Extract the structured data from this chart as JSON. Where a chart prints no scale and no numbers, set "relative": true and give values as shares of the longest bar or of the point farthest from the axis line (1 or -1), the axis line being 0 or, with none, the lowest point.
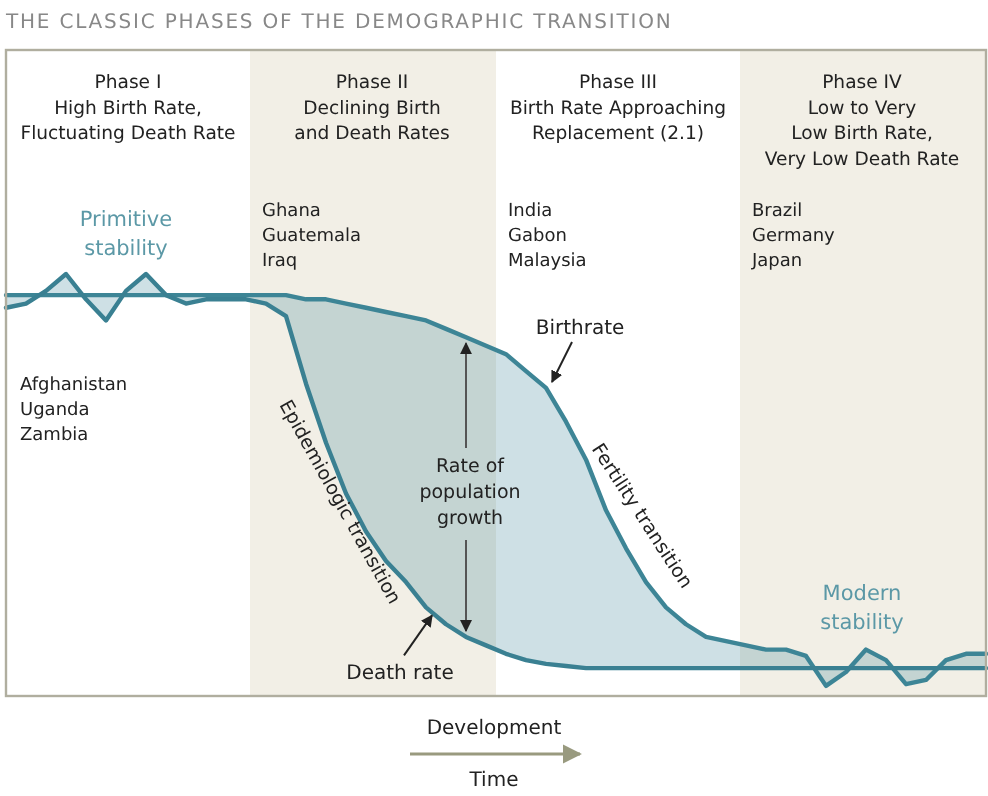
{
  "chart_data": {
    "type": "line",
    "title": "THE CLASSIC PHASES OF THE DEMOGRAPHIC TRANSITION",
    "xlabel": "Development",
    "relative": true,
    "categories": [
      null,
      null,
      null,
      null,
      null,
      null,
      null,
      null,
      null,
      null,
      null,
      null,
      null,
      null,
      null,
      null,
      null,
      null,
      null,
      null,
      null,
      null,
      null,
      null,
      null,
      null,
      null,
      null,
      null,
      null,
      null,
      null,
      null,
      null,
      null,
      null,
      null,
      null,
      null,
      null,
      null,
      null,
      null,
      null,
      null,
      null,
      null,
      null,
      null,
      null
    ],
    "series": [
      {
        "name": "Birthrate",
        "color": "#3d8596",
        "values": [
          0.95,
          0.95,
          0.95,
          0.95,
          0.95,
          0.95,
          0.95,
          0.95,
          0.95,
          0.95,
          0.95,
          0.95,
          0.95,
          0.95,
          0.95,
          0.94,
          0.94,
          0.93,
          0.92,
          0.91,
          0.9,
          0.89,
          0.87,
          0.85,
          0.83,
          0.81,
          0.77,
          0.73,
          0.65,
          0.56,
          0.44,
          0.35,
          0.27,
          0.21,
          0.17,
          0.14,
          0.13,
          0.12,
          0.11,
          0.11,
          0.095,
          0.024,
          0.057,
          0.11,
          0.085,
          0.028,
          0.038,
          0.085,
          0.1,
          0.1
        ],
        "lower": [
          0.92,
          0.93,
          0.96,
          1.0,
          0.94,
          0.89,
          0.96,
          1.0,
          0.95,
          0.93,
          0.94,
          0.94,
          0.94,
          0.93,
          0.9,
          0.74,
          0.6,
          0.48,
          0.39,
          0.32,
          0.27,
          0.21,
          0.17,
          0.14,
          0.12,
          0.1,
          0.085,
          0.076,
          0.071,
          0.066,
          0.066,
          0.066,
          0.066,
          0.066,
          0.066,
          0.066,
          0.066,
          0.066,
          0.066,
          0.066,
          0.066,
          0.066,
          0.066,
          0.066,
          0.066,
          0.066,
          0.066,
          0.066,
          0.066,
          0.066
        ],
        "upper": [
          0.95,
          0.95,
          0.95,
          0.95,
          0.95,
          0.95,
          0.95,
          0.95,
          0.95,
          0.95,
          0.95,
          0.95,
          0.95,
          0.95,
          0.95,
          0.94,
          0.94,
          0.93,
          0.92,
          0.91,
          0.9,
          0.89,
          0.87,
          0.85,
          0.83,
          0.81,
          0.77,
          0.73,
          0.65,
          0.56,
          0.44,
          0.35,
          0.27,
          0.21,
          0.17,
          0.14,
          0.13,
          0.12,
          0.11,
          0.11,
          0.095,
          0.024,
          0.057,
          0.11,
          0.085,
          0.028,
          0.038,
          0.085,
          0.1,
          0.1
        ]
      },
      {
        "name": "Death rate",
        "color": "#3a8092",
        "values": [
          0.92,
          0.93,
          0.96,
          1.0,
          0.94,
          0.89,
          0.96,
          1.0,
          0.95,
          0.93,
          0.94,
          0.94,
          0.94,
          0.93,
          0.9,
          0.74,
          0.6,
          0.48,
          0.39,
          0.32,
          0.27,
          0.21,
          0.17,
          0.14,
          0.12,
          0.1,
          0.085,
          0.076,
          0.071,
          0.066,
          0.066,
          0.066,
          0.066,
          0.066,
          0.066,
          0.066,
          0.066,
          0.066,
          0.066,
          0.066,
          0.066,
          0.066,
          0.066,
          0.066,
          0.066,
          0.066,
          0.066,
          0.066,
          0.066,
          0.066
        ]
      }
    ],
    "annotations": [
      "Phase I\nHigh Birth Rate,\nFluctuating Death Rate",
      "Phase II\nDeclining Birth\nand Death Rates",
      "Phase III\nBirth Rate Approaching\nReplacement (2.1)",
      "Phase IV\nLow to Very\nLow Birth Rate,\nVery Low Death Rate",
      "Primitive\nstability",
      "Modern\nstability",
      "Rate of\npopulation\ngrowth",
      "Epidemiologic transition",
      "Fertility transition",
      "Afghanistan\nUganda\nZambia",
      "Ghana\nGuatemala\nIraq",
      "India\nGabon\nMalaysia",
      "Brazil\nGermany\nJapan",
      "Time"
    ]
  }
}
